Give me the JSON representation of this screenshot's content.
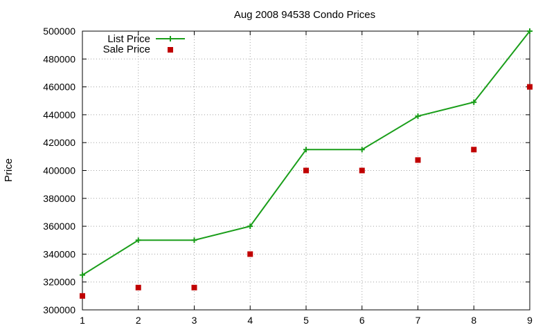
{
  "chart_data": {
    "type": "line",
    "title": "Aug 2008 94538 Condo Prices",
    "xlabel": "",
    "ylabel": "Price",
    "x": [
      1,
      2,
      3,
      4,
      5,
      6,
      7,
      8,
      9
    ],
    "xlim": [
      1,
      9
    ],
    "ylim": [
      300000,
      500000
    ],
    "yticks": [
      "300000",
      "320000",
      "340000",
      "360000",
      "380000",
      "400000",
      "420000",
      "440000",
      "460000",
      "480000",
      "500000"
    ],
    "xticks": [
      "1",
      "2",
      "3",
      "4",
      "5",
      "6",
      "7",
      "8",
      "9"
    ],
    "grid": true,
    "legend_position": "top-left",
    "series": [
      {
        "name": "List Price",
        "style": "line-with-plus-markers",
        "color": "#1a9e1a",
        "values": [
          325000,
          350000,
          350000,
          360000,
          415000,
          415000,
          439000,
          449000,
          500000
        ]
      },
      {
        "name": "Sale Price",
        "style": "square-markers",
        "color": "#c00000",
        "values": [
          310000,
          316000,
          316000,
          340000,
          400000,
          400000,
          407500,
          415000,
          460000
        ]
      }
    ]
  }
}
